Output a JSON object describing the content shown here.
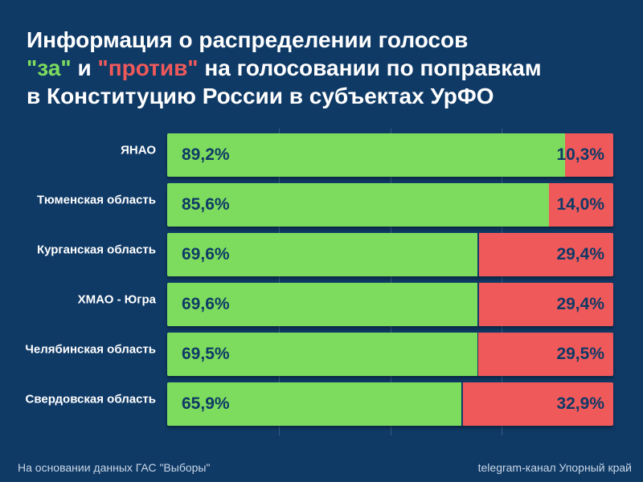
{
  "title": {
    "line1": "Информация о распределении голосов",
    "za": "\"за\"",
    "and": " и ",
    "protiv": "\"против\"",
    "line2_rest": " на голосовании по поправкам",
    "line3": "в Конституцию России в субъектах УрФО"
  },
  "colors": {
    "background": "#0f3a66",
    "for": "#7ddc5e",
    "against": "#f0595a",
    "value_text": "#0f3a66"
  },
  "chart_data": {
    "type": "bar",
    "orientation": "horizontal",
    "stacked": true,
    "title": "Информация о распределении голосов \"за\" и \"против\" на голосовании по поправкам в Конституцию России в субъектах УрФО",
    "categories": [
      "ЯНАО",
      "Тюменская область",
      "Курганская область",
      "ХМАО - Югра",
      "Челябинская область",
      "Свердовская область"
    ],
    "series": [
      {
        "name": "за",
        "values": [
          89.2,
          85.6,
          69.6,
          69.6,
          69.5,
          65.9
        ],
        "labels": [
          "89,2%",
          "85,6%",
          "69,6%",
          "69,6%",
          "69,5%",
          "65,9%"
        ]
      },
      {
        "name": "против",
        "values": [
          10.3,
          14.0,
          29.4,
          29.4,
          29.5,
          32.9
        ],
        "labels": [
          "10,3%",
          "14,0%",
          "29,4%",
          "29,4%",
          "29,5%",
          "32,9%"
        ]
      }
    ],
    "xlim": [
      0,
      100
    ],
    "grid": true
  },
  "footer": {
    "source": "На основании данных ГАС \"Выборы\"",
    "credit": "telegram-канал Упорный край"
  }
}
